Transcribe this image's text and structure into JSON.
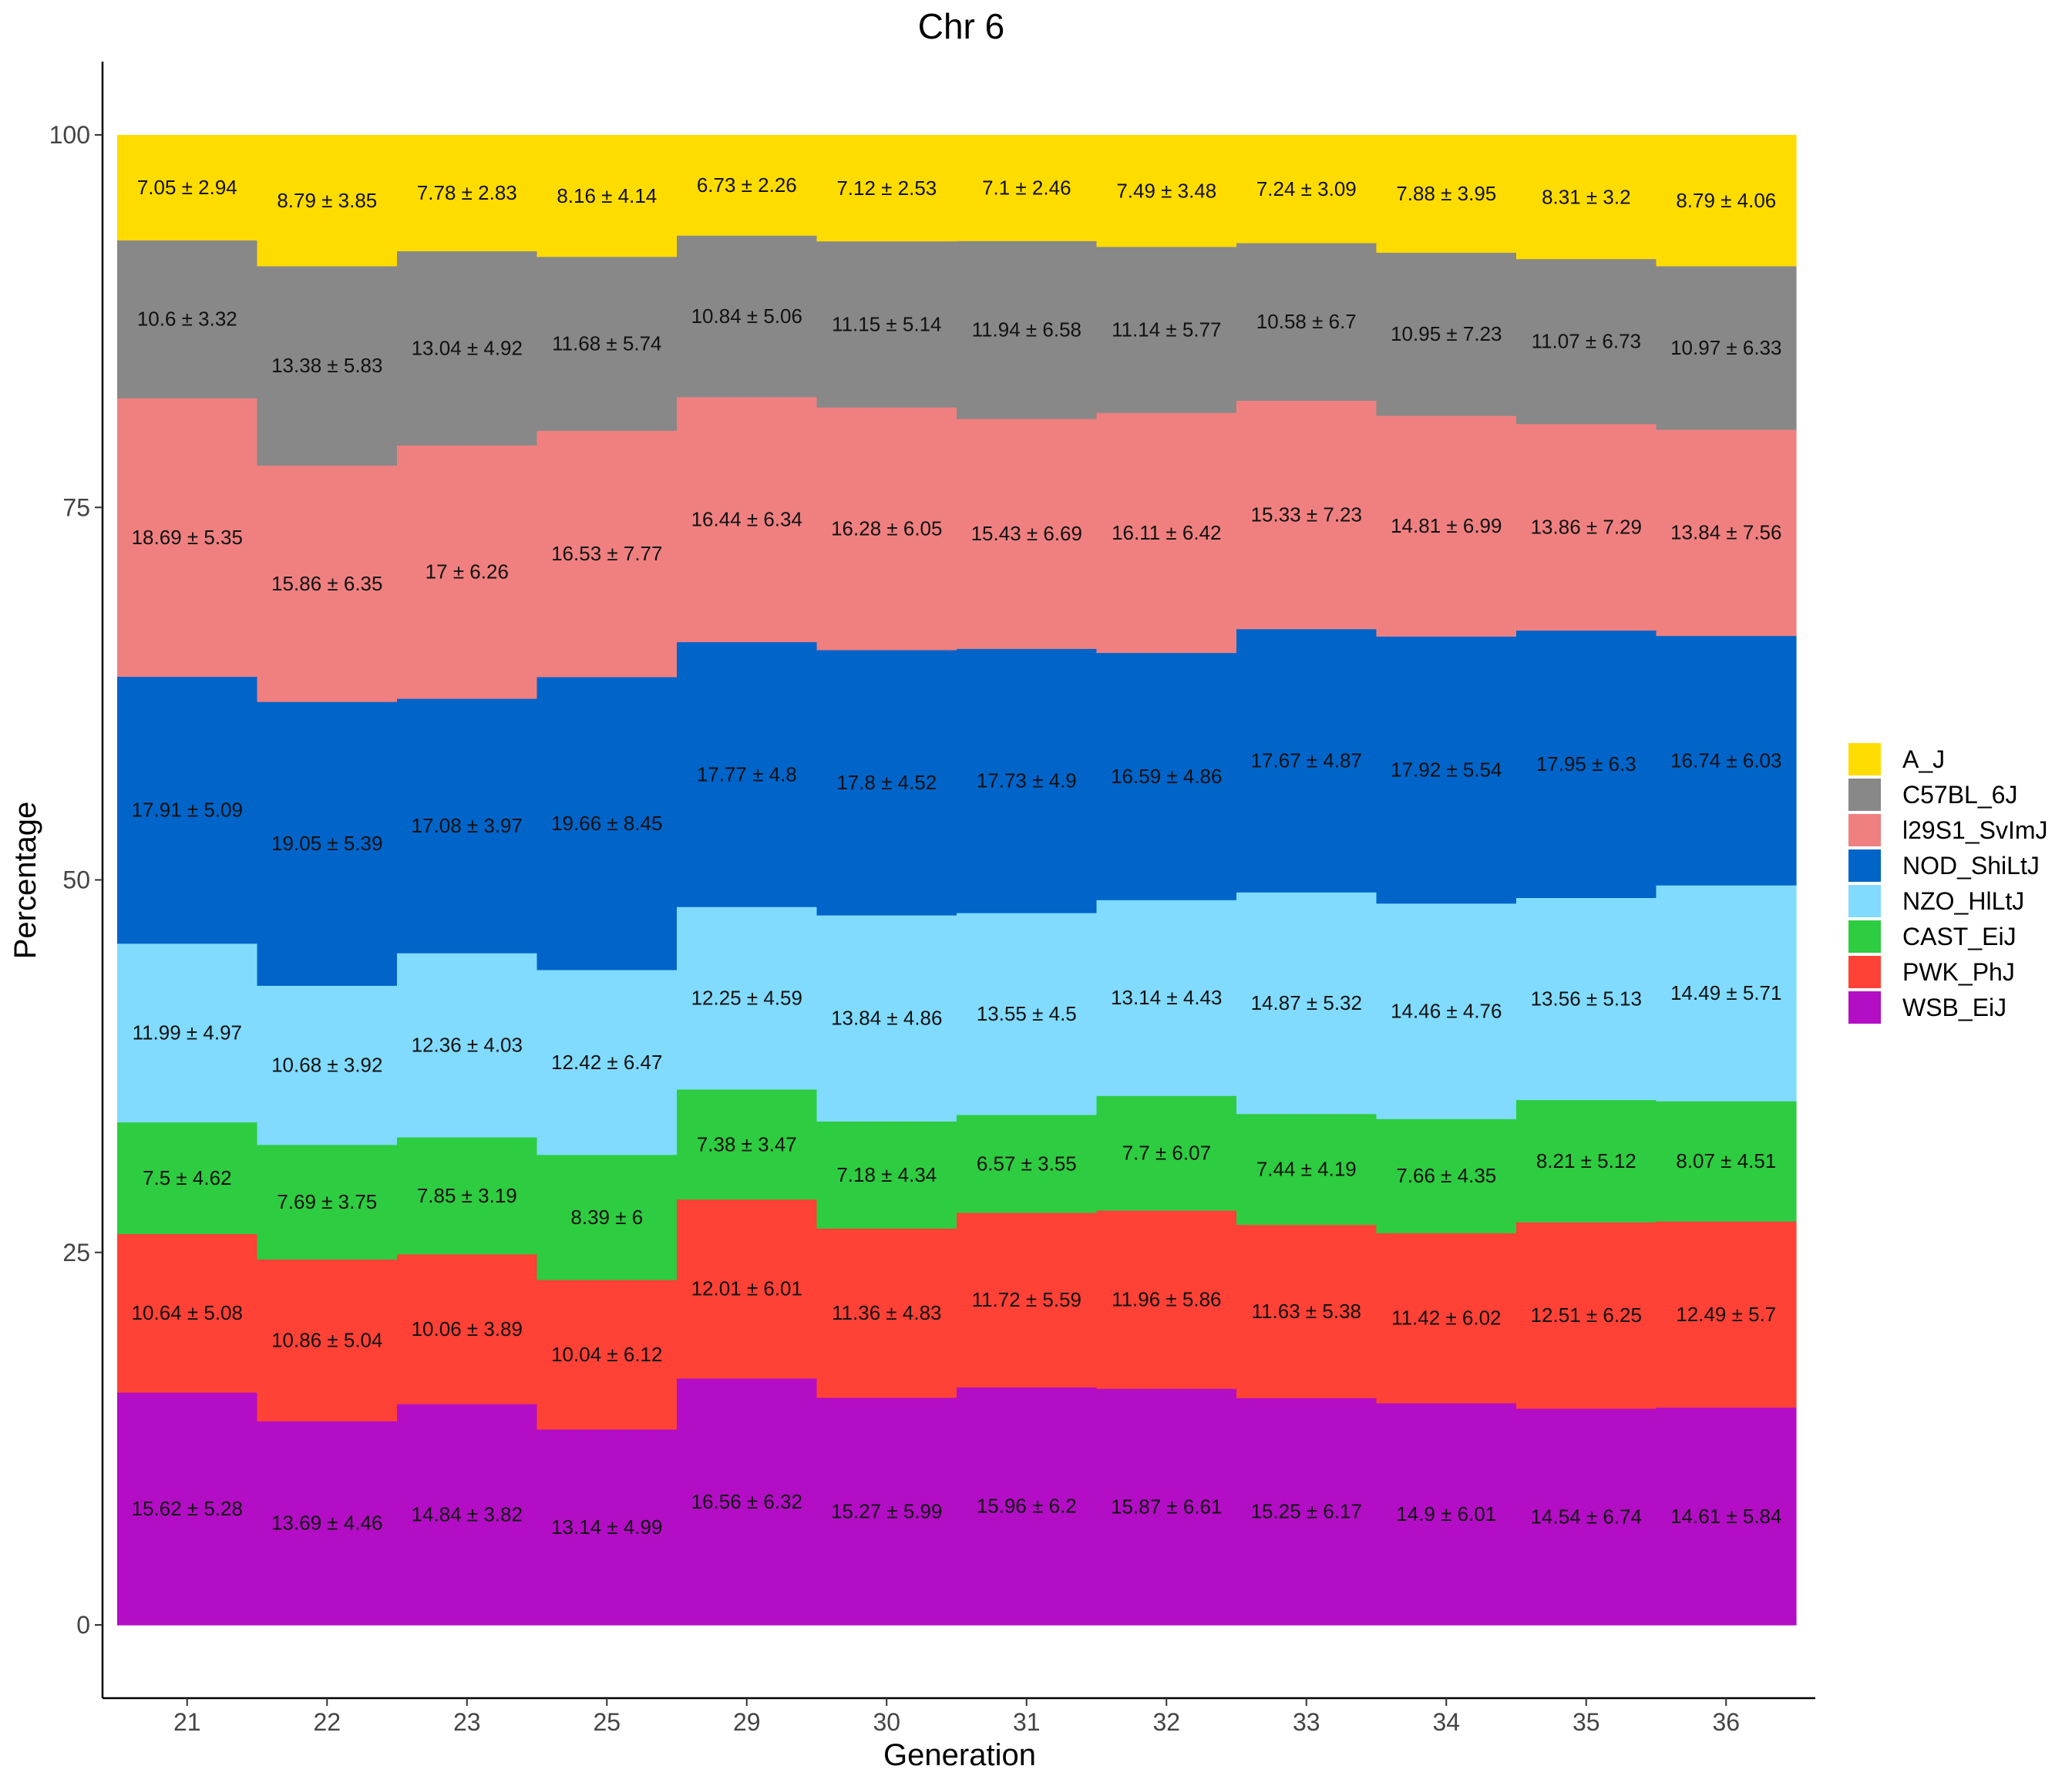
{
  "chart_data": {
    "type": "bar",
    "stacked": true,
    "title": "Chr 6",
    "xlabel": "Generation",
    "ylabel": "Percentage",
    "ylim": [
      0,
      100
    ],
    "yticks": [
      "0",
      "25",
      "50",
      "75",
      "100"
    ],
    "categories": [
      "21",
      "22",
      "23",
      "25",
      "29",
      "30",
      "31",
      "32",
      "33",
      "34",
      "35",
      "36"
    ],
    "legend_position": "right",
    "grid": false,
    "series": [
      {
        "name": "WSB_EiJ",
        "color": "#B30DC5",
        "values": [
          15.62,
          13.69,
          14.84,
          13.14,
          16.56,
          15.27,
          15.96,
          15.87,
          15.25,
          14.9,
          14.54,
          14.61
        ],
        "labels": [
          "15.62 ± 5.28",
          "13.69 ± 4.46",
          "14.84 ± 3.82",
          "13.14 ± 4.99",
          "16.56 ± 6.32",
          "15.27 ± 5.99",
          "15.96 ± 6.2",
          "15.87 ± 6.61",
          "15.25 ± 6.17",
          "14.9 ± 6.01",
          "14.54 ± 6.74",
          "14.61 ± 5.84"
        ]
      },
      {
        "name": "PWK_PhJ",
        "color": "#FF4136",
        "values": [
          10.64,
          10.86,
          10.06,
          10.04,
          12.01,
          11.36,
          11.72,
          11.96,
          11.63,
          11.42,
          12.51,
          12.49
        ],
        "labels": [
          "10.64 ± 5.08",
          "10.86 ± 5.04",
          "10.06 ± 3.89",
          "10.04 ± 6.12",
          "12.01 ± 6.01",
          "11.36 ± 4.83",
          "11.72 ± 5.59",
          "11.96 ± 5.86",
          "11.63 ± 5.38",
          "11.42 ± 6.02",
          "12.51 ± 6.25",
          "12.49 ± 5.7"
        ]
      },
      {
        "name": "CAST_EiJ",
        "color": "#2ECC40",
        "values": [
          7.5,
          7.69,
          7.85,
          8.39,
          7.38,
          7.18,
          6.57,
          7.7,
          7.44,
          7.66,
          8.21,
          8.07
        ],
        "labels": [
          "7.5 ± 4.62",
          "7.69 ± 3.75",
          "7.85 ± 3.19",
          "8.39 ± 6",
          "7.38 ± 3.47",
          "7.18 ± 4.34",
          "6.57 ± 3.55",
          "7.7 ± 6.07",
          "7.44 ± 4.19",
          "7.66 ± 4.35",
          "8.21 ± 5.12",
          "8.07 ± 4.51"
        ]
      },
      {
        "name": "NZO_HlLtJ",
        "color": "#80DBFF",
        "values": [
          11.99,
          10.68,
          12.36,
          12.42,
          12.25,
          13.84,
          13.55,
          13.14,
          14.87,
          14.46,
          13.56,
          14.49
        ],
        "labels": [
          "11.99 ± 4.97",
          "10.68 ± 3.92",
          "12.36 ± 4.03",
          "12.42 ± 6.47",
          "12.25 ± 4.59",
          "13.84 ± 4.86",
          "13.55 ± 4.5",
          "13.14 ± 4.43",
          "14.87 ± 5.32",
          "14.46 ± 4.76",
          "13.56 ± 5.13",
          "14.49 ± 5.71"
        ]
      },
      {
        "name": "NOD_ShiLtJ",
        "color": "#0064C9",
        "values": [
          17.91,
          19.05,
          17.08,
          19.66,
          17.77,
          17.8,
          17.73,
          16.59,
          17.67,
          17.92,
          17.95,
          16.74
        ],
        "labels": [
          "17.91 ± 5.09",
          "19.05 ± 5.39",
          "17.08 ± 3.97",
          "19.66 ± 8.45",
          "17.77 ± 4.8",
          "17.8 ± 4.52",
          "17.73 ± 4.9",
          "16.59 ± 4.86",
          "17.67 ± 4.87",
          "17.92 ± 5.54",
          "17.95 ± 6.3",
          "16.74 ± 6.03"
        ]
      },
      {
        "name": "l29S1_SvImJ",
        "color": "#F08080",
        "values": [
          18.69,
          15.86,
          17.0,
          16.53,
          16.44,
          16.28,
          15.43,
          16.11,
          15.33,
          14.81,
          13.86,
          13.84
        ],
        "labels": [
          "18.69 ± 5.35",
          "15.86 ± 6.35",
          "17 ± 6.26",
          "16.53 ± 7.77",
          "16.44 ± 6.34",
          "16.28 ± 6.05",
          "15.43 ± 6.69",
          "16.11 ± 6.42",
          "15.33 ± 7.23",
          "14.81 ± 6.99",
          "13.86 ± 7.29",
          "13.84 ± 7.56"
        ]
      },
      {
        "name": "C57BL_6J",
        "color": "#888888",
        "values": [
          10.6,
          13.38,
          13.04,
          11.68,
          10.84,
          11.15,
          11.94,
          11.14,
          10.58,
          10.95,
          11.07,
          10.97
        ],
        "labels": [
          "10.6 ± 3.32",
          "13.38 ± 5.83",
          "13.04 ± 4.92",
          "11.68 ± 5.74",
          "10.84 ± 5.06",
          "11.15 ± 5.14",
          "11.94 ± 6.58",
          "11.14 ± 5.77",
          "10.58 ± 6.7",
          "10.95 ± 7.23",
          "11.07 ± 6.73",
          "10.97 ± 6.33"
        ]
      },
      {
        "name": "A_J",
        "color": "#FFDC00",
        "values": [
          7.05,
          8.79,
          7.78,
          8.16,
          6.73,
          7.12,
          7.1,
          7.49,
          7.24,
          7.88,
          8.31,
          8.79
        ],
        "labels": [
          "7.05 ± 2.94",
          "8.79 ± 3.85",
          "7.78 ± 2.83",
          "8.16 ± 4.14",
          "6.73 ± 2.26",
          "7.12 ± 2.53",
          "7.1 ± 2.46",
          "7.49 ± 3.48",
          "7.24 ± 3.09",
          "7.88 ± 3.95",
          "8.31 ± 3.2",
          "8.79 ± 4.06"
        ]
      }
    ],
    "legend_order": [
      "A_J",
      "C57BL_6J",
      "l29S1_SvImJ",
      "NOD_ShiLtJ",
      "NZO_HlLtJ",
      "CAST_EiJ",
      "PWK_PhJ",
      "WSB_EiJ"
    ]
  }
}
